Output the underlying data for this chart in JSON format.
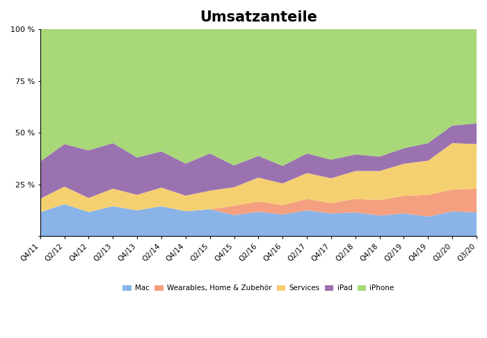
{
  "title": "Umsatzanteile",
  "quarters": [
    "Q4/11",
    "Q2/12",
    "Q4/12",
    "Q2/13",
    "Q4/13",
    "Q2/14",
    "Q4/14",
    "Q2/15",
    "Q4/15",
    "Q2/16",
    "Q4/16",
    "Q2/17",
    "Q4/17",
    "Q2/18",
    "Q4/18",
    "Q2/19",
    "Q4/19",
    "Q2/20",
    "Q3/20"
  ],
  "mac": [
    11.6,
    15.5,
    11.7,
    14.5,
    12.5,
    14.5,
    12.1,
    13.0,
    10.2,
    11.8,
    10.5,
    12.5,
    11.0,
    11.5,
    10.0,
    11.0,
    9.5,
    12.0,
    11.5
  ],
  "wearables": [
    0.0,
    0.0,
    0.0,
    0.0,
    0.0,
    0.0,
    0.0,
    0.0,
    4.5,
    5.0,
    4.5,
    5.5,
    5.0,
    6.5,
    7.5,
    8.5,
    10.5,
    10.5,
    11.5
  ],
  "services": [
    6.5,
    8.5,
    6.8,
    8.5,
    7.5,
    9.0,
    7.5,
    9.0,
    9.0,
    11.5,
    10.5,
    12.5,
    12.0,
    13.5,
    14.0,
    15.5,
    16.5,
    22.5,
    21.5
  ],
  "ipad": [
    18.0,
    20.5,
    23.0,
    22.0,
    18.0,
    17.5,
    15.5,
    18.0,
    10.5,
    10.5,
    8.5,
    9.5,
    9.0,
    8.0,
    7.0,
    7.5,
    8.5,
    8.5,
    10.0
  ],
  "iphone": [
    63.9,
    55.5,
    58.5,
    55.0,
    62.0,
    59.0,
    64.9,
    60.0,
    65.8,
    61.2,
    66.0,
    60.0,
    63.0,
    60.5,
    61.5,
    57.5,
    55.0,
    46.5,
    45.5
  ],
  "colors": {
    "mac": "#8ab4e8",
    "wearables": "#f4a080",
    "services": "#f5d070",
    "ipad": "#9b72b0",
    "iphone": "#a8d878"
  },
  "legend_labels": {
    "mac": "Mac",
    "wearables": "Wearables, Home & Zubehör",
    "services": "Services",
    "ipad": "iPad",
    "iphone": "iPhone"
  },
  "yticks": [
    0,
    25,
    50,
    75,
    100
  ],
  "ytick_labels": [
    "",
    "25 %",
    "50 %",
    "75 %",
    "100 %"
  ],
  "figwidth": 7.0,
  "figheight": 4.87,
  "dpi": 100
}
